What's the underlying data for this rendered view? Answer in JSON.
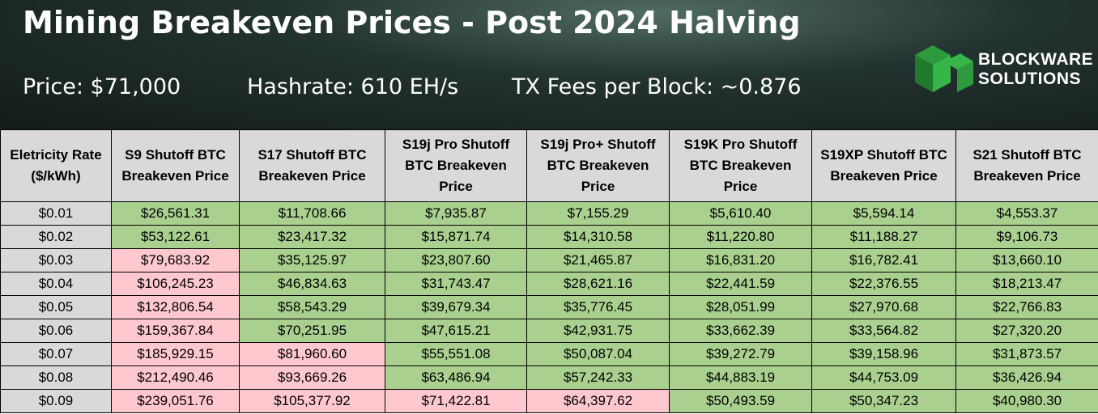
{
  "header": {
    "title": "Mining Breakeven Prices - Post 2024 Halving",
    "stats": [
      "Price: $71,000",
      "Hashrate: 610 EH/s",
      "TX Fees per Block: ~0.876"
    ],
    "logo": [
      "BLOCKWARE",
      "SOLUTIONS"
    ]
  },
  "table": {
    "columns": [
      "Eletricity Rate ($/kWh)",
      "S9 Shutoff BTC Breakeven Price",
      "S17 Shutoff BTC Breakeven Price",
      "S19j Pro Shutoff BTC Breakeven Price",
      "S19j Pro+ Shutoff BTC Breakeven Price",
      "S19K Pro Shutoff BTC Breakeven Price",
      "S19XP Shutoff BTC Breakeven Price",
      "S21 Shutoff BTC Breakeven Price"
    ],
    "rows": [
      [
        "$0.01",
        "$26,561.31",
        "$11,708.66",
        "$7,935.87",
        "$7,155.29",
        "$5,610.40",
        "$5,594.14",
        "$4,553.37"
      ],
      [
        "$0.02",
        "$53,122.61",
        "$23,417.32",
        "$15,871.74",
        "$14,310.58",
        "$11,220.80",
        "$11,188.27",
        "$9,106.73"
      ],
      [
        "$0.03",
        "$79,683.92",
        "$35,125.97",
        "$23,807.60",
        "$21,465.87",
        "$16,831.20",
        "$16,782.41",
        "$13,660.10"
      ],
      [
        "$0.04",
        "$106,245.23",
        "$46,834.63",
        "$31,743.47",
        "$28,621.16",
        "$22,441.59",
        "$22,376.55",
        "$18,213.47"
      ],
      [
        "$0.05",
        "$132,806.54",
        "$58,543.29",
        "$39,679.34",
        "$35,776.45",
        "$28,051.99",
        "$27,970.68",
        "$22,766.83"
      ],
      [
        "$0.06",
        "$159,367.84",
        "$70,251.95",
        "$47,615.21",
        "$42,931.75",
        "$33,662.39",
        "$33,564.82",
        "$27,320.20"
      ],
      [
        "$0.07",
        "$185,929.15",
        "$81,960.60",
        "$55,551.08",
        "$50,087.04",
        "$39,272.79",
        "$39,158.96",
        "$31,873.57"
      ],
      [
        "$0.08",
        "$212,490.46",
        "$93,669.26",
        "$63,486.94",
        "$57,242.33",
        "$44,883.19",
        "$44,753.09",
        "$36,426.94"
      ],
      [
        "$0.09",
        "$239,051.76",
        "$105,377.92",
        "$71,422.81",
        "$64,397.62",
        "$50,493.59",
        "$50,347.23",
        "$40,980.30"
      ]
    ],
    "cell_colors": [
      [
        "#d9d9d9",
        "#a9d08e",
        "#a9d08e",
        "#a9d08e",
        "#a9d08e",
        "#a9d08e",
        "#a9d08e",
        "#a9d08e"
      ],
      [
        "#d9d9d9",
        "#a9d08e",
        "#a9d08e",
        "#a9d08e",
        "#a9d08e",
        "#a9d08e",
        "#a9d08e",
        "#a9d08e"
      ],
      [
        "#d9d9d9",
        "#ffc7ce",
        "#a9d08e",
        "#a9d08e",
        "#a9d08e",
        "#a9d08e",
        "#a9d08e",
        "#a9d08e"
      ],
      [
        "#d9d9d9",
        "#ffc7ce",
        "#a9d08e",
        "#a9d08e",
        "#a9d08e",
        "#a9d08e",
        "#a9d08e",
        "#a9d08e"
      ],
      [
        "#d9d9d9",
        "#ffc7ce",
        "#a9d08e",
        "#a9d08e",
        "#a9d08e",
        "#a9d08e",
        "#a9d08e",
        "#a9d08e"
      ],
      [
        "#d9d9d9",
        "#ffc7ce",
        "#a9d08e",
        "#a9d08e",
        "#a9d08e",
        "#a9d08e",
        "#a9d08e",
        "#a9d08e"
      ],
      [
        "#d9d9d9",
        "#ffc7ce",
        "#ffc7ce",
        "#a9d08e",
        "#a9d08e",
        "#a9d08e",
        "#a9d08e",
        "#a9d08e"
      ],
      [
        "#d9d9d9",
        "#ffc7ce",
        "#ffc7ce",
        "#a9d08e",
        "#a9d08e",
        "#a9d08e",
        "#a9d08e",
        "#a9d08e"
      ],
      [
        "#d9d9d9",
        "#ffc7ce",
        "#ffc7ce",
        "#ffc7ce",
        "#ffc7ce",
        "#a9d08e",
        "#a9d08e",
        "#a9d08e"
      ]
    ]
  }
}
